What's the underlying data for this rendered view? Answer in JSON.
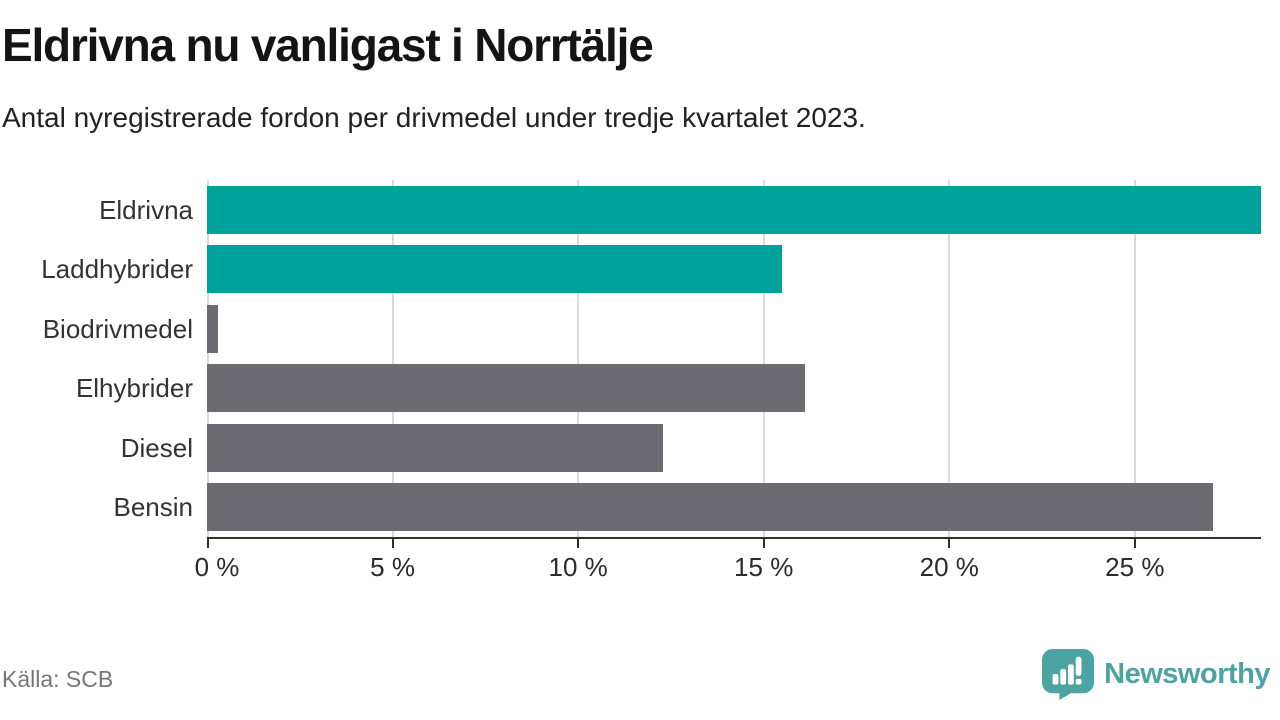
{
  "header": {
    "title": "Eldrivna nu vanligast i Norrtälje",
    "subtitle": "Antal nyregistrerade fordon per drivmedel under tredje kvartalet 2023."
  },
  "chart_data": {
    "type": "bar",
    "orientation": "horizontal",
    "title": "Eldrivna nu vanligast i Norrtälje",
    "subtitle": "Antal nyregistrerade fordon per drivmedel under tredje kvartalet 2023.",
    "categories": [
      "Eldrivna",
      "Laddhybrider",
      "Biodrivmedel",
      "Elhybrider",
      "Diesel",
      "Bensin"
    ],
    "values": [
      28.4,
      15.5,
      0.3,
      16.1,
      12.3,
      27.1
    ],
    "unit": "%",
    "bar_colors": [
      "#00a39b",
      "#00a39b",
      "#6d6b72",
      "#6d6b72",
      "#6d6b72",
      "#6d6b72"
    ],
    "xlabel": "",
    "ylabel": "",
    "xlim": [
      0,
      28.4
    ],
    "x_ticks": [
      0,
      5,
      10,
      15,
      20,
      25
    ],
    "x_tick_labels": [
      "0 %",
      "5 %",
      "10 %",
      "15 %",
      "20 %",
      "25 %"
    ],
    "grid": "vertical",
    "legend": "none"
  },
  "footer": {
    "source": "Källa: SCB",
    "brand": "Newsworthy"
  },
  "colors": {
    "accent_teal": "#00a39b",
    "muted_gray": "#6d6b72",
    "brand_teal": "#4ba4a1",
    "gridline": "#dadada",
    "axis": "#2f2f2f"
  }
}
